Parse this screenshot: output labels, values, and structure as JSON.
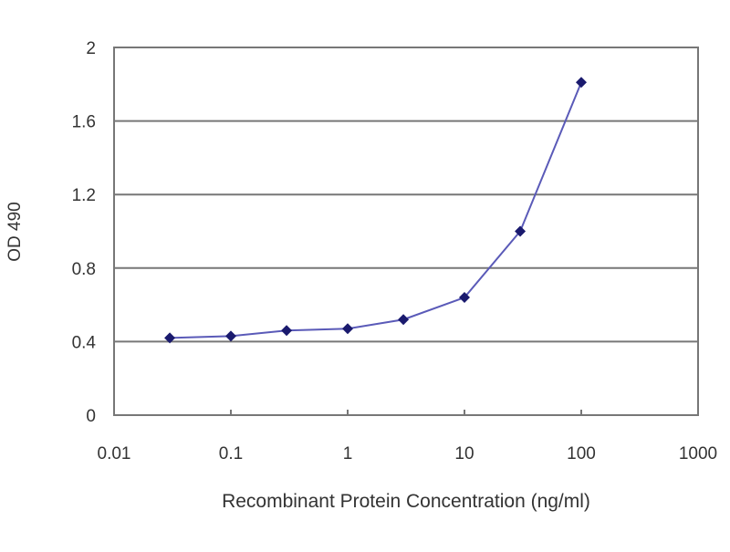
{
  "chart_data": {
    "type": "line",
    "title": "",
    "xlabel": "Recombinant Protein Concentration (ng/ml)",
    "ylabel": "OD 490",
    "xscale": "log",
    "xlim": [
      0.01,
      1000
    ],
    "ylim": [
      0,
      2
    ],
    "xticks": [
      "0.01",
      "0.1",
      "1",
      "10",
      "100",
      "1000"
    ],
    "yticks": [
      "0",
      "0.4",
      "0.8",
      "1.2",
      "1.6",
      "2"
    ],
    "grid": "horizontal",
    "legend": "none",
    "series": [
      {
        "x": [
          0.03,
          0.1,
          0.3,
          1,
          3,
          10,
          30,
          100
        ],
        "y": [
          0.42,
          0.43,
          0.46,
          0.47,
          0.52,
          0.64,
          1.0,
          1.81
        ],
        "color": "#1a1a6e",
        "line_color": "#5a5ab8"
      }
    ]
  }
}
